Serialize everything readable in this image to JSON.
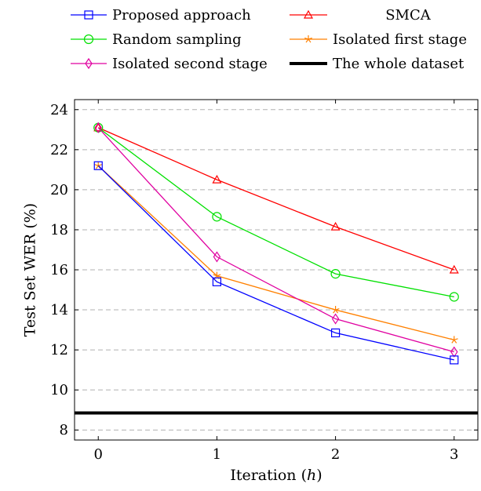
{
  "chart_data": {
    "type": "line",
    "xlabel": "Iteration (h)",
    "ylabel": "Test Set WER (%)",
    "x": [
      0,
      1,
      2,
      3
    ],
    "xlim": [
      -0.2,
      3.2
    ],
    "ylim": [
      7.5,
      24.5
    ],
    "xticks": [
      "0",
      "1",
      "2",
      "3"
    ],
    "yticks": [
      "8",
      "10",
      "12",
      "14",
      "16",
      "18",
      "20",
      "22",
      "24"
    ],
    "grid": "horizontal dashed",
    "legend_position": "top, above plot, two columns",
    "series": [
      {
        "name": "Proposed approach",
        "color": "#0000ff",
        "marker": "square",
        "values": [
          21.2,
          15.4,
          12.85,
          11.5
        ]
      },
      {
        "name": "SMCA",
        "color": "#ff0000",
        "marker": "triangle",
        "values": [
          23.1,
          20.5,
          18.15,
          16.0
        ]
      },
      {
        "name": "Random sampling",
        "color": "#00e000",
        "marker": "circle",
        "values": [
          23.1,
          18.65,
          15.8,
          14.65
        ]
      },
      {
        "name": "Isolated first stage",
        "color": "#ff8000",
        "marker": "star",
        "values": [
          21.2,
          15.7,
          14.0,
          12.5
        ]
      },
      {
        "name": "Isolated second stage",
        "color": "#e000a0",
        "marker": "diamond",
        "values": [
          23.1,
          16.65,
          13.55,
          11.9
        ]
      },
      {
        "name": "The whole dataset",
        "color": "#000000",
        "marker": "none",
        "style": "thick horizontal line",
        "values": [
          8.85,
          8.85,
          8.85,
          8.85
        ]
      }
    ]
  }
}
